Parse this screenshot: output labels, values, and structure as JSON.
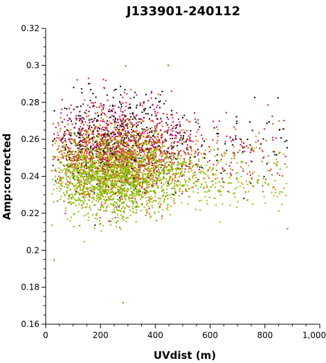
{
  "chart_data": {
    "type": "scatter",
    "title": "J133901-240112",
    "xlabel": "UVdist (m)",
    "ylabel": "Amp:corrected",
    "xlim": [
      0,
      1000
    ],
    "ylim": [
      0.16,
      0.32
    ],
    "x_ticks": [
      0,
      200,
      400,
      600,
      800,
      1000
    ],
    "x_tick_labels": [
      "0",
      "200",
      "400",
      "600",
      "800",
      "1,000"
    ],
    "y_ticks": [
      0.16,
      0.18,
      0.2,
      0.22,
      0.24,
      0.26,
      0.28,
      0.3,
      0.32
    ],
    "y_tick_labels": [
      "0.16",
      "0.18",
      "0.2",
      "0.22",
      "0.24",
      "0.26",
      "0.28",
      "0.3",
      "0.32"
    ],
    "grid": false,
    "legend": "none",
    "series": [
      {
        "color": "#000000",
        "center": 0.258,
        "spread": 0.013,
        "x_range": [
          20,
          880
        ],
        "count": 650
      },
      {
        "color": "#d6006e",
        "center": 0.257,
        "spread": 0.013,
        "x_range": [
          20,
          880
        ],
        "count": 750
      },
      {
        "color": "#cc5500",
        "center": 0.249,
        "spread": 0.012,
        "x_range": [
          20,
          880
        ],
        "count": 1000
      },
      {
        "color": "#c8a000",
        "center": 0.244,
        "spread": 0.011,
        "x_range": [
          20,
          880
        ],
        "count": 700
      },
      {
        "color": "#7fc400",
        "center": 0.239,
        "spread": 0.01,
        "x_range": [
          20,
          880
        ],
        "count": 1300
      }
    ],
    "notable_points": [
      {
        "x": 290,
        "y": 0.3
      },
      {
        "x": 28,
        "y": 0.195
      },
      {
        "x": 280,
        "y": 0.172
      },
      {
        "x": 880,
        "y": 0.212
      }
    ]
  }
}
